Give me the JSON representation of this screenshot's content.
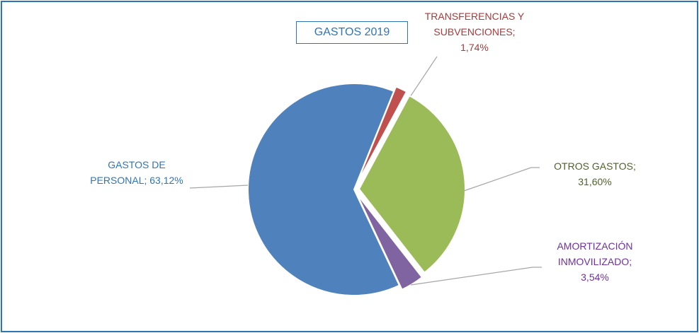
{
  "chart_data": {
    "type": "pie",
    "title": "GASTOS 2019",
    "categories": [
      "TRANSFERENCIAS Y SUBVENCIONES",
      "OTROS GASTOS",
      "AMORTIZACIÓN INMOVILIZADO",
      "GASTOS DE PERSONAL"
    ],
    "values": [
      1.74,
      31.6,
      3.54,
      63.12
    ],
    "value_labels": [
      "1,74%",
      "31,60%",
      "3,54%",
      "63,12%"
    ],
    "label_separator": ";",
    "colors": [
      "#c0504d",
      "#9bbb59",
      "#8064a2",
      "#4f81bd"
    ],
    "label_colors": [
      "#a83a3a",
      "#4f6228",
      "#7030a0",
      "#2e75b6"
    ]
  }
}
